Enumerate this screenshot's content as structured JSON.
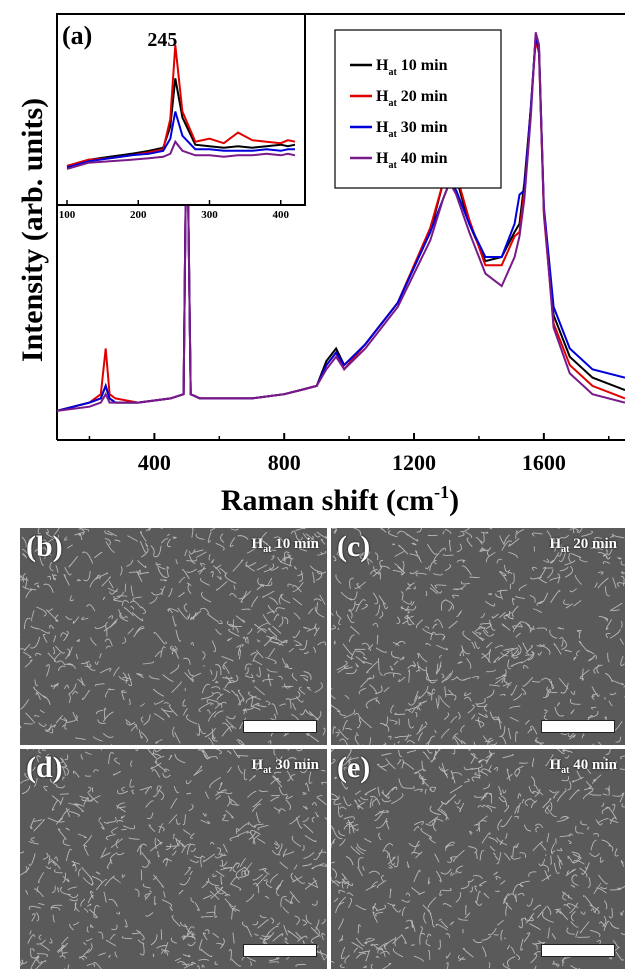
{
  "chart_data": {
    "type": "line",
    "panel_label": "(a)",
    "xlabel": "Raman shift",
    "xlabel_unit": "(cm",
    "xlabel_sup": "-1",
    "xlabel_close": ")",
    "ylabel": "Intensity (arb. units)",
    "xlim": [
      100,
      1850
    ],
    "ylim": [
      0,
      1.0
    ],
    "xticks": [
      400,
      800,
      1200,
      1600
    ],
    "legend_position": "top-right",
    "series": [
      {
        "name": "H",
        "sub": "at",
        "suffix": "10 min",
        "color": "#000000",
        "x": [
          100,
          200,
          235,
          250,
          262,
          280,
          350,
          450,
          490,
          500,
          512,
          540,
          600,
          700,
          800,
          850,
          900,
          930,
          960,
          985,
          1050,
          1150,
          1250,
          1290,
          1310,
          1330,
          1370,
          1420,
          1470,
          1510,
          1525,
          1540,
          1560,
          1575,
          1585,
          1600,
          1630,
          1680,
          1750,
          1850
        ],
        "y": [
          0.07,
          0.09,
          0.1,
          0.13,
          0.1,
          0.09,
          0.09,
          0.1,
          0.11,
          0.84,
          0.11,
          0.1,
          0.1,
          0.1,
          0.11,
          0.12,
          0.13,
          0.19,
          0.22,
          0.18,
          0.23,
          0.33,
          0.5,
          0.62,
          0.67,
          0.63,
          0.52,
          0.43,
          0.44,
          0.5,
          0.52,
          0.62,
          0.8,
          0.97,
          0.94,
          0.55,
          0.3,
          0.2,
          0.15,
          0.12
        ]
      },
      {
        "name": "H",
        "sub": "at",
        "suffix": "20 min",
        "color": "#e00000",
        "x": [
          100,
          200,
          235,
          250,
          262,
          280,
          350,
          450,
          490,
          500,
          512,
          540,
          600,
          700,
          800,
          850,
          900,
          930,
          960,
          985,
          1050,
          1150,
          1250,
          1290,
          1310,
          1330,
          1370,
          1420,
          1470,
          1510,
          1525,
          1540,
          1560,
          1575,
          1585,
          1600,
          1630,
          1680,
          1750,
          1850
        ],
        "y": [
          0.07,
          0.09,
          0.11,
          0.22,
          0.11,
          0.1,
          0.09,
          0.1,
          0.11,
          0.84,
          0.11,
          0.1,
          0.1,
          0.1,
          0.11,
          0.12,
          0.13,
          0.18,
          0.21,
          0.17,
          0.23,
          0.33,
          0.51,
          0.62,
          0.66,
          0.64,
          0.53,
          0.42,
          0.42,
          0.49,
          0.5,
          0.6,
          0.8,
          0.96,
          0.93,
          0.54,
          0.28,
          0.18,
          0.13,
          0.1
        ]
      },
      {
        "name": "H",
        "sub": "at",
        "suffix": "30 min",
        "color": "#0000dd",
        "x": [
          100,
          200,
          235,
          250,
          262,
          280,
          350,
          450,
          490,
          500,
          512,
          540,
          600,
          700,
          800,
          850,
          900,
          930,
          960,
          985,
          1050,
          1150,
          1250,
          1290,
          1310,
          1330,
          1370,
          1420,
          1470,
          1510,
          1525,
          1540,
          1560,
          1575,
          1585,
          1600,
          1630,
          1680,
          1750,
          1850
        ],
        "y": [
          0.07,
          0.09,
          0.1,
          0.13,
          0.1,
          0.09,
          0.09,
          0.1,
          0.11,
          0.84,
          0.11,
          0.1,
          0.1,
          0.1,
          0.11,
          0.12,
          0.13,
          0.18,
          0.21,
          0.18,
          0.23,
          0.33,
          0.5,
          0.58,
          0.62,
          0.6,
          0.52,
          0.44,
          0.44,
          0.52,
          0.59,
          0.6,
          0.8,
          0.97,
          0.94,
          0.56,
          0.32,
          0.22,
          0.17,
          0.15
        ]
      },
      {
        "name": "H",
        "sub": "at",
        "suffix": "40 min",
        "color": "#7a1a8a",
        "x": [
          100,
          200,
          235,
          250,
          262,
          280,
          350,
          450,
          490,
          500,
          512,
          540,
          600,
          700,
          800,
          850,
          900,
          930,
          960,
          985,
          1050,
          1150,
          1250,
          1290,
          1310,
          1330,
          1370,
          1420,
          1470,
          1510,
          1525,
          1540,
          1560,
          1575,
          1585,
          1600,
          1630,
          1680,
          1750,
          1850
        ],
        "y": [
          0.07,
          0.08,
          0.09,
          0.11,
          0.09,
          0.09,
          0.09,
          0.1,
          0.11,
          0.83,
          0.11,
          0.1,
          0.1,
          0.1,
          0.11,
          0.12,
          0.13,
          0.17,
          0.2,
          0.17,
          0.22,
          0.32,
          0.48,
          0.58,
          0.62,
          0.59,
          0.5,
          0.4,
          0.37,
          0.44,
          0.49,
          0.58,
          0.78,
          0.98,
          0.95,
          0.55,
          0.27,
          0.16,
          0.11,
          0.09
        ]
      }
    ],
    "inset": {
      "xlim": [
        100,
        420
      ],
      "ylim": [
        0,
        1.0
      ],
      "xticks": [
        100,
        200,
        300,
        400
      ],
      "annotation": "245",
      "series_y": [
        [
          0.14,
          0.18,
          0.2,
          0.22,
          0.24,
          0.26,
          0.4,
          0.72,
          0.46,
          0.28,
          0.27,
          0.26,
          0.27,
          0.26,
          0.27,
          0.28,
          0.27,
          0.28
        ],
        [
          0.14,
          0.18,
          0.19,
          0.21,
          0.23,
          0.25,
          0.45,
          0.94,
          0.5,
          0.3,
          0.32,
          0.29,
          0.36,
          0.31,
          0.3,
          0.29,
          0.31,
          0.3
        ],
        [
          0.13,
          0.17,
          0.19,
          0.21,
          0.22,
          0.24,
          0.32,
          0.5,
          0.34,
          0.25,
          0.25,
          0.24,
          0.24,
          0.24,
          0.25,
          0.24,
          0.25,
          0.25
        ],
        [
          0.12,
          0.16,
          0.17,
          0.18,
          0.19,
          0.2,
          0.22,
          0.3,
          0.24,
          0.21,
          0.21,
          0.2,
          0.21,
          0.21,
          0.22,
          0.21,
          0.22,
          0.21
        ]
      ],
      "x": [
        100,
        130,
        160,
        190,
        215,
        235,
        245,
        252,
        262,
        280,
        300,
        320,
        340,
        360,
        380,
        400,
        410,
        420
      ]
    }
  },
  "panels": [
    {
      "letter": "(b)",
      "cond_main": "H",
      "cond_sub": "at",
      "cond_rest": " 10 min"
    },
    {
      "letter": "(c)",
      "cond_main": "H",
      "cond_sub": "at",
      "cond_rest": " 20 min"
    },
    {
      "letter": "(d)",
      "cond_main": "H",
      "cond_sub": "at",
      "cond_rest": " 30 min"
    },
    {
      "letter": "(e)",
      "cond_main": "H",
      "cond_sub": "at",
      "cond_rest": " 40 min"
    }
  ]
}
